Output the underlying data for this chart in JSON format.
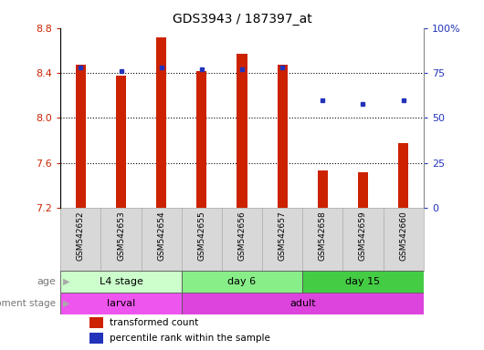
{
  "title": "GDS3943 / 187397_at",
  "samples": [
    "GSM542652",
    "GSM542653",
    "GSM542654",
    "GSM542655",
    "GSM542656",
    "GSM542657",
    "GSM542658",
    "GSM542659",
    "GSM542660"
  ],
  "bar_bottom": 7.2,
  "transformed_counts": [
    8.47,
    8.38,
    8.72,
    8.42,
    8.57,
    8.47,
    7.53,
    7.52,
    7.78
  ],
  "percentile_ranks": [
    78,
    76,
    78,
    77,
    77,
    78,
    60,
    58,
    60
  ],
  "ylim": [
    7.2,
    8.8
  ],
  "yticks": [
    7.2,
    7.6,
    8.0,
    8.4,
    8.8
  ],
  "right_yticks": [
    0,
    25,
    50,
    75,
    100
  ],
  "right_ylim": [
    0,
    100
  ],
  "bar_color": "#cc2200",
  "dot_color": "#2233bb",
  "grid_color": "#000000",
  "age_groups": [
    {
      "label": "L4 stage",
      "start": 0,
      "end": 3,
      "color": "#ccffcc"
    },
    {
      "label": "day 6",
      "start": 3,
      "end": 6,
      "color": "#88ee88"
    },
    {
      "label": "day 15",
      "start": 6,
      "end": 9,
      "color": "#44cc44"
    }
  ],
  "dev_groups": [
    {
      "label": "larval",
      "start": 0,
      "end": 3,
      "color": "#ee55ee"
    },
    {
      "label": "adult",
      "start": 3,
      "end": 9,
      "color": "#dd44dd"
    }
  ],
  "legend_bar_label": "transformed count",
  "legend_dot_label": "percentile rank within the sample",
  "age_label": "age",
  "dev_label": "development stage",
  "tick_label_color": "#cc2200",
  "right_tick_label_color": "#2233bb",
  "plot_facecolor": "#ffffff",
  "sample_cell_color": "#d8d8d8",
  "sample_cell_edge": "#aaaaaa"
}
